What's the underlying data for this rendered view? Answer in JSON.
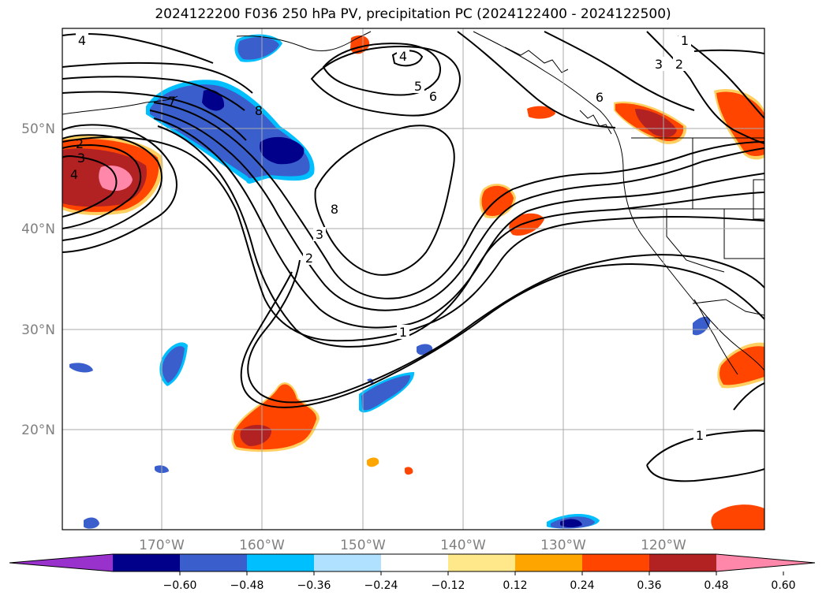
{
  "title": "2024122200 F036 250 hPa PV, precipitation PC (2024122400 - 2024122500)",
  "lat_labels": [
    "50°N",
    "40°N",
    "30°N",
    "20°N"
  ],
  "lon_labels": [
    "170°W",
    "160°W",
    "150°W",
    "140°W",
    "130°W",
    "120°W"
  ],
  "contour_labels": [
    {
      "text": "4",
      "name": "pv-label-4-northwest"
    },
    {
      "text": "4",
      "name": "pv-label-4-north"
    },
    {
      "text": "5",
      "name": "pv-label-5"
    },
    {
      "text": "6",
      "name": "pv-label-6"
    },
    {
      "text": "6",
      "name": "pv-label-6-coast"
    },
    {
      "text": "1",
      "name": "pv-label-1-northeast"
    },
    {
      "text": "3",
      "name": "pv-label-3-northeast"
    },
    {
      "text": "2",
      "name": "pv-label-2-northeast"
    },
    {
      "text": "8",
      "name": "pv-label-8-jet"
    },
    {
      "text": "7",
      "name": "pv-label-7"
    },
    {
      "text": "2",
      "name": "pv-label-2-west"
    },
    {
      "text": "3",
      "name": "pv-label-3-west"
    },
    {
      "text": "4",
      "name": "pv-label-4-west"
    },
    {
      "text": "8",
      "name": "pv-label-8-trough"
    },
    {
      "text": "3",
      "name": "pv-label-3-trough"
    },
    {
      "text": "2",
      "name": "pv-label-2-trough"
    },
    {
      "text": "1",
      "name": "pv-label-1-central"
    },
    {
      "text": "1",
      "name": "pv-label-1-southeast"
    }
  ],
  "colorbar": {
    "colors": [
      "#9932cc",
      "#00008b",
      "#3a5fcd",
      "#00bfff",
      "#b0e2ff",
      "#ffffff",
      "#ffe88a",
      "#ffa500",
      "#ff4500",
      "#b22222",
      "#ff88aa"
    ],
    "ticks": [
      "−0.60",
      "−0.48",
      "−0.36",
      "−0.24",
      "−0.12",
      "0.12",
      "0.24",
      "0.36",
      "0.48",
      "0.60"
    ]
  }
}
